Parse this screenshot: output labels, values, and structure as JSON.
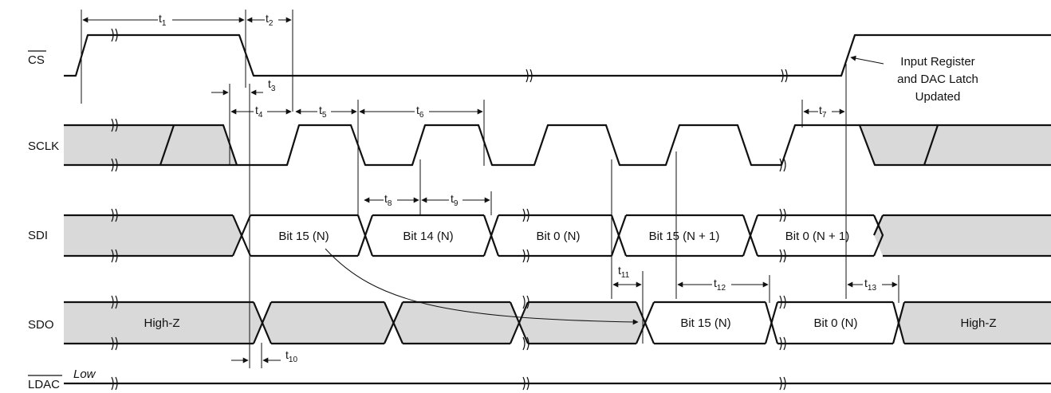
{
  "signals": {
    "cs": "CS",
    "sclk": "SCLK",
    "sdi": "SDI",
    "sdo": "SDO",
    "ldac": "LDAC"
  },
  "sdi_bits": {
    "b1": "Bit 15 (N)",
    "b2": "Bit 14 (N)",
    "b3": "Bit 0 (N)",
    "b4": "Bit 15 (N + 1)",
    "b5": "Bit 0 (N + 1)"
  },
  "sdo_labels": {
    "highz_left": "High-Z",
    "bit15": "Bit 15 (N)",
    "bit0": "Bit 0 (N)",
    "highz_right": "High-Z"
  },
  "ldac_state": "Low",
  "annotation": {
    "line1": "Input Register",
    "line2": "and DAC Latch",
    "line3": "Updated"
  },
  "timing": {
    "t1": "1",
    "t2": "2",
    "t3": "3",
    "t4": "4",
    "t5": "5",
    "t6": "6",
    "t7": "7",
    "t8": "8",
    "t9": "9",
    "t10": "10",
    "t11": "11",
    "t12": "12",
    "t13": "13"
  },
  "colors": {
    "undefined_fill": "#d9d9d9",
    "line": "#111111"
  }
}
